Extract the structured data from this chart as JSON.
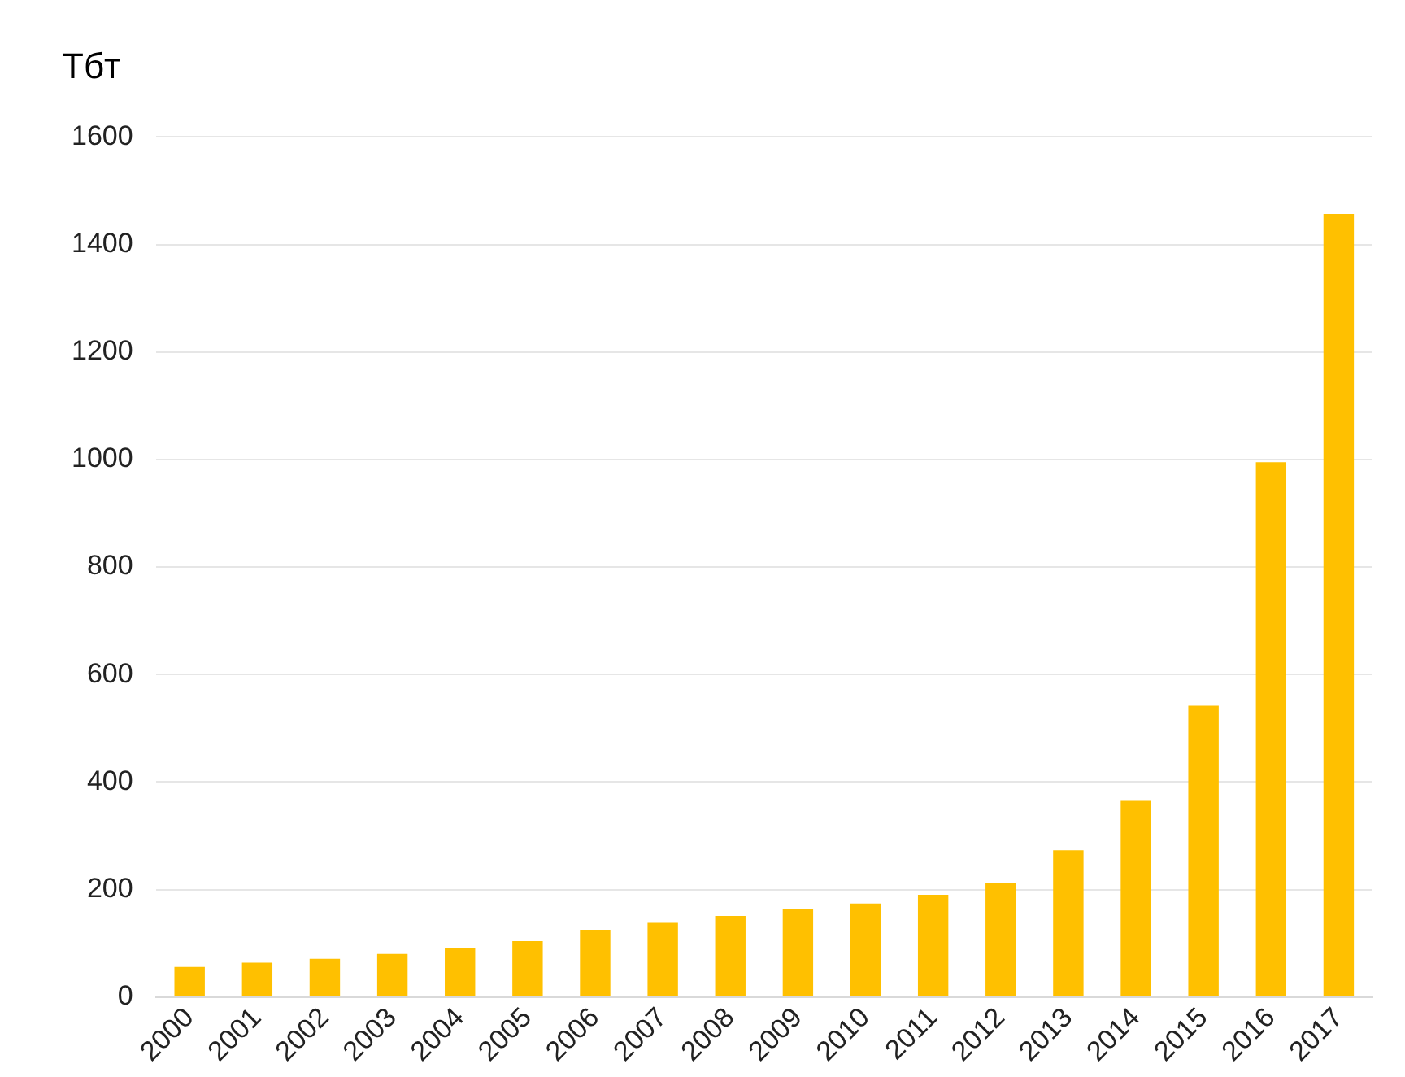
{
  "chart_data": {
    "type": "bar",
    "ylabel": "Тбт",
    "categories": [
      "2000",
      "2001",
      "2002",
      "2003",
      "2004",
      "2005",
      "2006",
      "2007",
      "2008",
      "2009",
      "2010",
      "2011",
      "2012",
      "2013",
      "2014",
      "2015",
      "2016",
      "2017"
    ],
    "values": [
      56,
      64,
      71,
      80,
      91,
      104,
      125,
      138,
      151,
      163,
      174,
      190,
      212,
      273,
      365,
      542,
      995,
      1457
    ],
    "color": "#ffc000",
    "ylim": [
      0,
      1600
    ],
    "yticks": [
      0,
      200,
      400,
      600,
      800,
      1000,
      1200,
      1400,
      1600
    ],
    "grid": "y",
    "legend": false
  }
}
